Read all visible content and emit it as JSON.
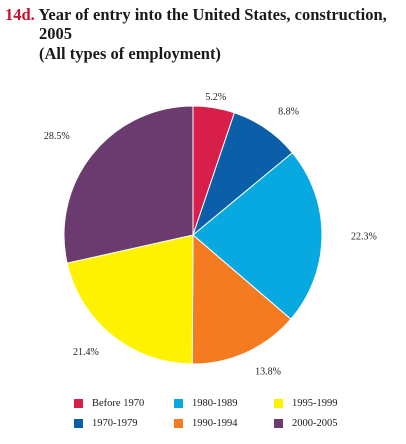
{
  "header": {
    "fig_number": "14d.",
    "title_line1": "Year of entry into the United States, construction,",
    "title_line2": "2005",
    "subtitle": "(All types of employment)"
  },
  "chart_data": {
    "type": "pie",
    "title": "Year of entry into the United States, construction, 2005",
    "subtitle": "(All types of employment)",
    "start_angle_deg": 0,
    "direction": "clockwise",
    "legend_position": "bottom",
    "slices": [
      {
        "label": "Before 1970",
        "value": 5.2,
        "display": "5.2%",
        "color": "#d81f4a"
      },
      {
        "label": "1970-1979",
        "value": 8.8,
        "display": "8.8%",
        "color": "#0a5fa8"
      },
      {
        "label": "1980-1989",
        "value": 22.3,
        "display": "22.3%",
        "color": "#08a9e0"
      },
      {
        "label": "1990-1994",
        "value": 13.8,
        "display": "13.8%",
        "color": "#f47b20"
      },
      {
        "label": "1995-1999",
        "value": 21.4,
        "display": "21.4%",
        "color": "#fff200"
      },
      {
        "label": "2000-2005",
        "value": 28.5,
        "display": "28.5%",
        "color": "#6b3a6f"
      }
    ]
  }
}
